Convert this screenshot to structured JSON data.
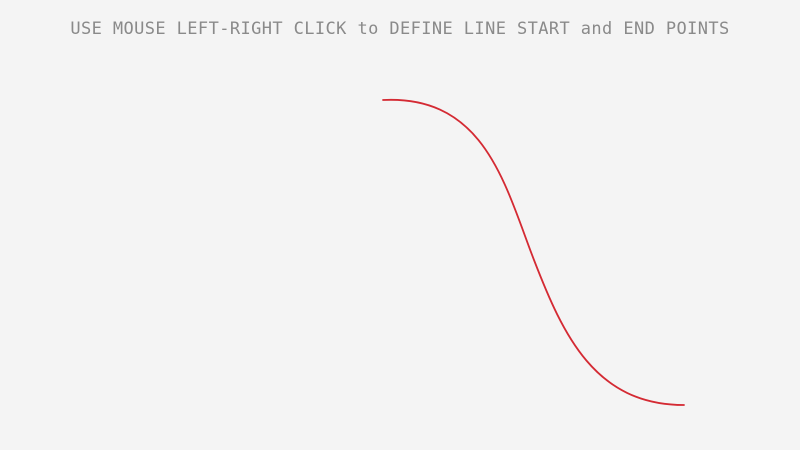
{
  "header": {
    "instruction": "USE MOUSE LEFT-RIGHT CLICK to DEFINE LINE START and END POINTS"
  },
  "curve": {
    "stroke_color": "#d42a33",
    "background_color": "#f4f4f4",
    "text_color": "#8a8a8a"
  }
}
